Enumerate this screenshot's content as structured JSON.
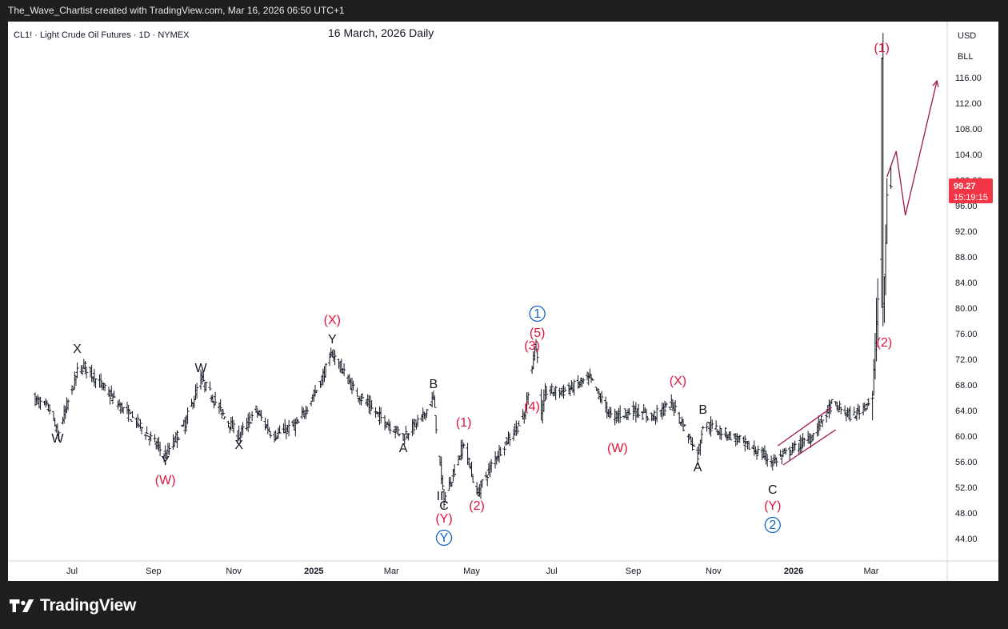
{
  "header": {
    "caption": "The_Wave_Chartist created with TradingView.com, Mar 16, 2026 06:50 UTC+1"
  },
  "symbol_info": "CL1! · Light Crude Oil Futures · 1D · NYMEX",
  "chart_title": "16 March, 2026 Daily",
  "currency_label": "USD",
  "unit_label": "BLL",
  "last_price": {
    "value": "99.27",
    "countdown": "15:19:15",
    "color": "#f23645"
  },
  "footer": {
    "brand": "TradingView"
  },
  "colors": {
    "bars": "#131722",
    "wave_red": "#e0143c",
    "wave_blue": "#1565c0",
    "channel": "#a0184a",
    "background": "#ffffff"
  },
  "chart_data": {
    "type": "ohlc",
    "ylim": [
      42,
      122
    ],
    "yticks": [
      44,
      48,
      52,
      56,
      60,
      64,
      68,
      72,
      76,
      80,
      84,
      88,
      92,
      96,
      100,
      104,
      108,
      112,
      116
    ],
    "x_tick_labels": [
      "Jul",
      "Sep",
      "Nov",
      "2025",
      "Mar",
      "May",
      "Jul",
      "Sep",
      "Nov",
      "2026",
      "Mar"
    ],
    "x_tick_dates": [
      "2024-07-01",
      "2024-09-01",
      "2024-11-01",
      "2025-01-01",
      "2025-03-01",
      "2025-05-01",
      "2025-07-01",
      "2025-09-01",
      "2025-11-01",
      "2026-01-01",
      "2026-03-01"
    ],
    "approx_close_path": [
      [
        "2024-06-01",
        66
      ],
      [
        "2024-06-15",
        64
      ],
      [
        "2024-06-20",
        60
      ],
      [
        "2024-07-05",
        70
      ],
      [
        "2024-07-10",
        71
      ],
      [
        "2024-08-05",
        65
      ],
      [
        "2024-08-20",
        62
      ],
      [
        "2024-09-10",
        57
      ],
      [
        "2024-09-25",
        62
      ],
      [
        "2024-10-07",
        69
      ],
      [
        "2024-10-25",
        63
      ],
      [
        "2024-11-05",
        60
      ],
      [
        "2024-11-18",
        64
      ],
      [
        "2024-12-01",
        60
      ],
      [
        "2024-12-20",
        62
      ],
      [
        "2025-01-05",
        68
      ],
      [
        "2025-01-15",
        73
      ],
      [
        "2025-02-01",
        67
      ],
      [
        "2025-02-20",
        63
      ],
      [
        "2025-03-10",
        60
      ],
      [
        "2025-03-25",
        63
      ],
      [
        "2025-04-02",
        66
      ],
      [
        "2025-04-08",
        53
      ],
      [
        "2025-04-10",
        50
      ],
      [
        "2025-04-25",
        59
      ],
      [
        "2025-05-05",
        51
      ],
      [
        "2025-05-20",
        57
      ],
      [
        "2025-06-10",
        63
      ],
      [
        "2025-06-18",
        74
      ],
      [
        "2025-06-20",
        73
      ],
      [
        "2025-06-23",
        63
      ],
      [
        "2025-06-26",
        67
      ],
      [
        "2025-07-10",
        67
      ],
      [
        "2025-07-30",
        69
      ],
      [
        "2025-08-15",
        63
      ],
      [
        "2025-09-01",
        64
      ],
      [
        "2025-09-15",
        63
      ],
      [
        "2025-10-01",
        65
      ],
      [
        "2025-10-20",
        57
      ],
      [
        "2025-10-24",
        62
      ],
      [
        "2025-11-15",
        60
      ],
      [
        "2025-12-01",
        58
      ],
      [
        "2025-12-16",
        56
      ],
      [
        "2026-01-01",
        58
      ],
      [
        "2026-01-15",
        60
      ],
      [
        "2026-01-30",
        65
      ],
      [
        "2026-02-15",
        63
      ],
      [
        "2026-03-02",
        66
      ],
      [
        "2026-03-05",
        78
      ],
      [
        "2026-03-08",
        88
      ],
      [
        "2026-03-09",
        119
      ],
      [
        "2026-03-10",
        80
      ],
      [
        "2026-03-12",
        90
      ],
      [
        "2026-03-13",
        98
      ],
      [
        "2026-03-16",
        99.27
      ]
    ],
    "wave_labels": [
      {
        "text": "W",
        "date": "2024-06-20",
        "price": 59,
        "color": "black"
      },
      {
        "text": "X",
        "date": "2024-07-05",
        "price": 73,
        "color": "black"
      },
      {
        "text": "Y",
        "date": "2024-09-10",
        "price": 55.5,
        "color": "black"
      },
      {
        "text": "(W)",
        "date": "2024-09-10",
        "price": 52.5,
        "color": "red"
      },
      {
        "text": "W",
        "date": "2024-10-07",
        "price": 70,
        "color": "black"
      },
      {
        "text": "X",
        "date": "2024-11-05",
        "price": 58,
        "color": "black"
      },
      {
        "text": "(X)",
        "date": "2025-01-15",
        "price": 77.5,
        "color": "red"
      },
      {
        "text": "Y",
        "date": "2025-01-15",
        "price": 74.5,
        "color": "black"
      },
      {
        "text": "A",
        "date": "2025-03-10",
        "price": 57.5,
        "color": "black"
      },
      {
        "text": "B",
        "date": "2025-04-02",
        "price": 67.5,
        "color": "black"
      },
      {
        "text": "II",
        "date": "2025-04-07",
        "price": 50,
        "color": "black"
      },
      {
        "text": "C",
        "date": "2025-04-10",
        "price": 48.5,
        "color": "black"
      },
      {
        "text": "(Y)",
        "date": "2025-04-10",
        "price": 46.5,
        "color": "red"
      },
      {
        "text": "Y",
        "date": "2025-04-10",
        "price": 43.5,
        "color": "blue",
        "circled": true
      },
      {
        "text": "(1)",
        "date": "2025-04-25",
        "price": 61.5,
        "color": "red"
      },
      {
        "text": "(2)",
        "date": "2025-05-05",
        "price": 48.5,
        "color": "red"
      },
      {
        "text": "(3)",
        "date": "2025-06-16",
        "price": 73.5,
        "color": "red"
      },
      {
        "text": "(4)",
        "date": "2025-06-16",
        "price": 64,
        "color": "red"
      },
      {
        "text": "(5)",
        "date": "2025-06-20",
        "price": 75.5,
        "color": "red"
      },
      {
        "text": "1",
        "date": "2025-06-20",
        "price": 78.5,
        "color": "blue",
        "circled": true
      },
      {
        "text": "(W)",
        "date": "2025-08-20",
        "price": 57.5,
        "color": "red"
      },
      {
        "text": "(X)",
        "date": "2025-10-05",
        "price": 68,
        "color": "red"
      },
      {
        "text": "B",
        "date": "2025-10-24",
        "price": 63.5,
        "color": "black"
      },
      {
        "text": "A",
        "date": "2025-10-20",
        "price": 54.5,
        "color": "black"
      },
      {
        "text": "C",
        "date": "2025-12-16",
        "price": 51,
        "color": "black"
      },
      {
        "text": "(Y)",
        "date": "2025-12-16",
        "price": 48.5,
        "color": "red"
      },
      {
        "text": "2",
        "date": "2025-12-16",
        "price": 45.5,
        "color": "blue",
        "circled": true
      },
      {
        "text": "(1)",
        "date": "2026-03-09",
        "price": 120,
        "color": "red"
      },
      {
        "text": "(2)",
        "date": "2026-03-11",
        "price": 74,
        "color": "red"
      }
    ],
    "projection": [
      [
        "2026-03-13",
        100.5
      ],
      [
        "2026-03-20",
        104.5
      ],
      [
        "2026-03-27",
        94.5
      ],
      [
        "2026-04-20",
        115.5
      ]
    ],
    "channel": {
      "upper": [
        [
          "2025-12-20",
          58.5
        ],
        [
          "2026-01-30",
          64.5
        ]
      ],
      "lower": [
        [
          "2025-12-24",
          55.5
        ],
        [
          "2026-02-02",
          61
        ]
      ]
    }
  }
}
